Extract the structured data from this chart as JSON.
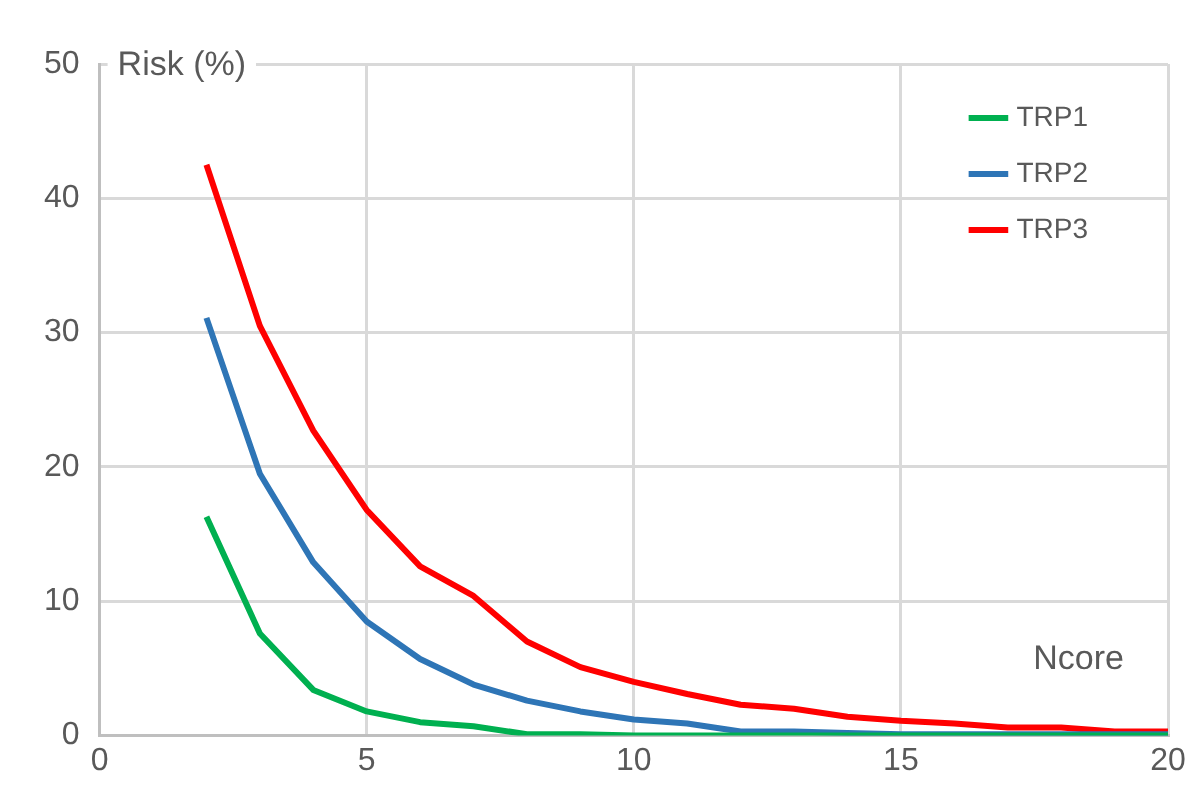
{
  "chart_data": {
    "type": "line",
    "xlabel": "Ncore",
    "ylabel": "Risk (%)",
    "x": [
      2,
      3,
      4,
      5,
      6,
      7,
      8,
      9,
      10,
      11,
      12,
      13,
      14,
      15,
      16,
      17,
      18,
      19,
      20
    ],
    "series": [
      {
        "name": "TRP1",
        "color": "#00b050",
        "values": [
          16.3,
          7.6,
          3.4,
          1.8,
          1.0,
          0.7,
          0.1,
          0.1,
          0,
          0,
          0,
          0,
          0,
          0,
          0,
          0,
          0,
          0,
          0
        ]
      },
      {
        "name": "TRP2",
        "color": "#2e75b6",
        "values": [
          31.1,
          19.5,
          12.9,
          8.5,
          5.7,
          3.8,
          2.6,
          1.8,
          1.2,
          0.9,
          0.3,
          0.3,
          0.2,
          0.1,
          0.1,
          0.1,
          0.1,
          0.1,
          0.1
        ]
      },
      {
        "name": "TRP3",
        "color": "#ff0000",
        "values": [
          42.5,
          30.5,
          22.7,
          16.8,
          12.6,
          10.4,
          7.0,
          5.1,
          4.0,
          3.1,
          2.3,
          2.0,
          1.4,
          1.1,
          0.9,
          0.6,
          0.6,
          0.3,
          0.3
        ]
      }
    ],
    "xlim": [
      0,
      20
    ],
    "xticks": [
      0,
      5,
      10,
      15,
      20
    ],
    "ylim": [
      0,
      50
    ],
    "yticks": [
      0,
      10,
      20,
      30,
      40,
      50
    ],
    "grid": true,
    "legend": "top right",
    "marker": "none",
    "line_style": "solid"
  }
}
